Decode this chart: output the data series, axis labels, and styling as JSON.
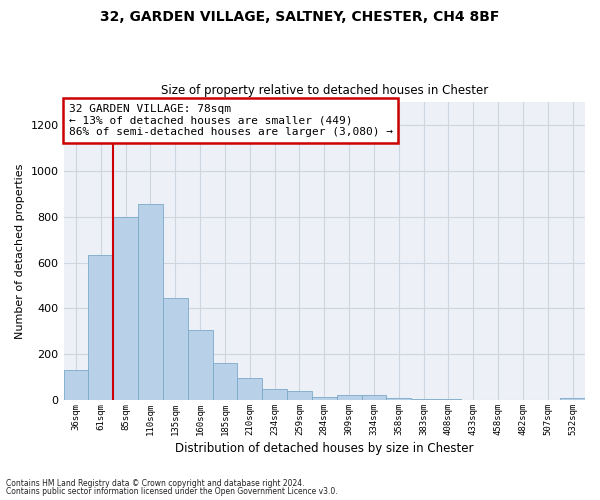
{
  "title1": "32, GARDEN VILLAGE, SALTNEY, CHESTER, CH4 8BF",
  "title2": "Size of property relative to detached houses in Chester",
  "xlabel": "Distribution of detached houses by size in Chester",
  "ylabel": "Number of detached properties",
  "categories": [
    "36sqm",
    "61sqm",
    "85sqm",
    "110sqm",
    "135sqm",
    "160sqm",
    "185sqm",
    "210sqm",
    "234sqm",
    "259sqm",
    "284sqm",
    "309sqm",
    "334sqm",
    "358sqm",
    "383sqm",
    "408sqm",
    "433sqm",
    "458sqm",
    "482sqm",
    "507sqm",
    "532sqm"
  ],
  "values": [
    130,
    635,
    800,
    855,
    445,
    305,
    160,
    95,
    50,
    38,
    15,
    20,
    20,
    8,
    5,
    3,
    2,
    2,
    1,
    1,
    10
  ],
  "bar_color": "#b8d0e8",
  "bar_edge_color": "#7aaac8",
  "vline_color": "#cc0000",
  "annotation_line1": "32 GARDEN VILLAGE: 78sqm",
  "annotation_line2": "← 13% of detached houses are smaller (449)",
  "annotation_line3": "86% of semi-detached houses are larger (3,080) →",
  "annotation_box_color": "#ffffff",
  "annotation_box_edge": "#cc0000",
  "ylim": [
    0,
    1300
  ],
  "yticks": [
    0,
    200,
    400,
    600,
    800,
    1000,
    1200
  ],
  "grid_color": "#cdd5e0",
  "bg_color": "#edf1f7",
  "footer1": "Contains HM Land Registry data © Crown copyright and database right 2024.",
  "footer2": "Contains public sector information licensed under the Open Government Licence v3.0."
}
